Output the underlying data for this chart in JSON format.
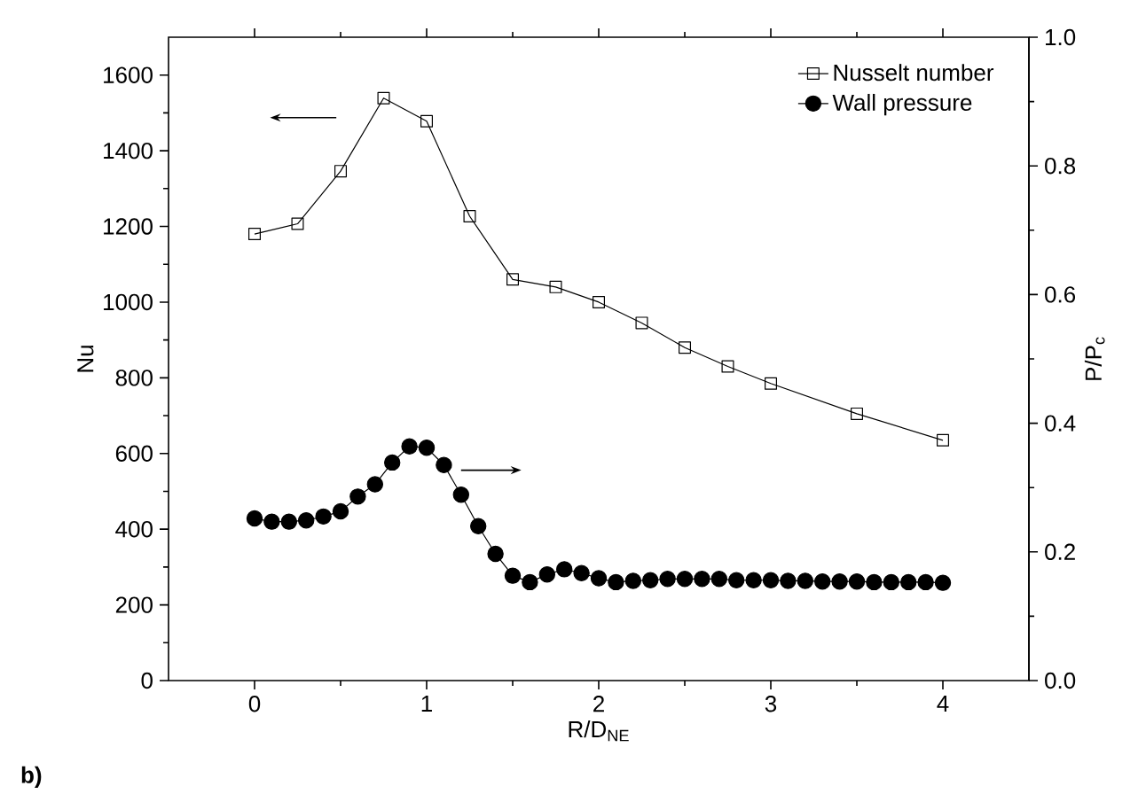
{
  "chart_data": {
    "type": "line",
    "xlabel": "R/D$_{NE}$",
    "ylabel": "Nu",
    "y2label": "P/P$_{c}$",
    "xlim": [
      -0.5,
      4.5
    ],
    "xticks": [
      0,
      1,
      2,
      3,
      4
    ],
    "ylim": [
      0,
      1700
    ],
    "yticks": [
      0,
      200,
      400,
      600,
      800,
      1000,
      1200,
      1400,
      1600
    ],
    "y2lim": [
      0,
      1.0
    ],
    "y2ticks": [
      {
        "value": 0,
        "label": "0.0"
      },
      {
        "value": 0.2,
        "label": "0.2"
      },
      {
        "value": 0.4,
        "label": "0.4"
      },
      {
        "value": 0.6,
        "label": "0.6"
      },
      {
        "value": 0.8,
        "label": "0.8"
      },
      {
        "value": 1.0,
        "label": "1.0"
      }
    ],
    "legend": "top right",
    "grid": false,
    "line_style": "solid",
    "annotations": [
      "b)"
    ],
    "series": [
      {
        "name": "Nusselt number",
        "color": "#000000",
        "marker": "square",
        "x": [
          0,
          0.25,
          0.5,
          0.75,
          1,
          1.25,
          1.5,
          1.75,
          2,
          2.25,
          2.5,
          2.75,
          3,
          3.5,
          4
        ],
        "values": [
          1180,
          1207,
          1346,
          1539,
          1478,
          1227,
          1060,
          1040,
          1000,
          945,
          880,
          830,
          785,
          705,
          635
        ]
      },
      {
        "name": "Wall pressure",
        "color": "#000000",
        "marker": "circle",
        "axis": "y2",
        "x": [
          0,
          0.1,
          0.2,
          0.3,
          0.4,
          0.5,
          0.6,
          0.7,
          0.8,
          0.9,
          1.0,
          1.1,
          1.2,
          1.3,
          1.4,
          1.5,
          1.6,
          1.7,
          1.8,
          1.9,
          2.0,
          2.1,
          2.2,
          2.3,
          2.4,
          2.5,
          2.6,
          2.7,
          2.8,
          2.9,
          3.0,
          3.1,
          3.2,
          3.3,
          3.4,
          3.5,
          3.6,
          3.7,
          3.8,
          3.9,
          4.0
        ],
        "values": [
          0.252,
          0.247,
          0.247,
          0.249,
          0.255,
          0.263,
          0.286,
          0.305,
          0.339,
          0.364,
          0.362,
          0.335,
          0.289,
          0.24,
          0.197,
          0.163,
          0.153,
          0.165,
          0.173,
          0.167,
          0.159,
          0.153,
          0.155,
          0.156,
          0.158,
          0.158,
          0.158,
          0.158,
          0.156,
          0.156,
          0.156,
          0.155,
          0.155,
          0.154,
          0.154,
          0.154,
          0.153,
          0.153,
          0.153,
          0.153,
          0.152
        ]
      }
    ]
  }
}
